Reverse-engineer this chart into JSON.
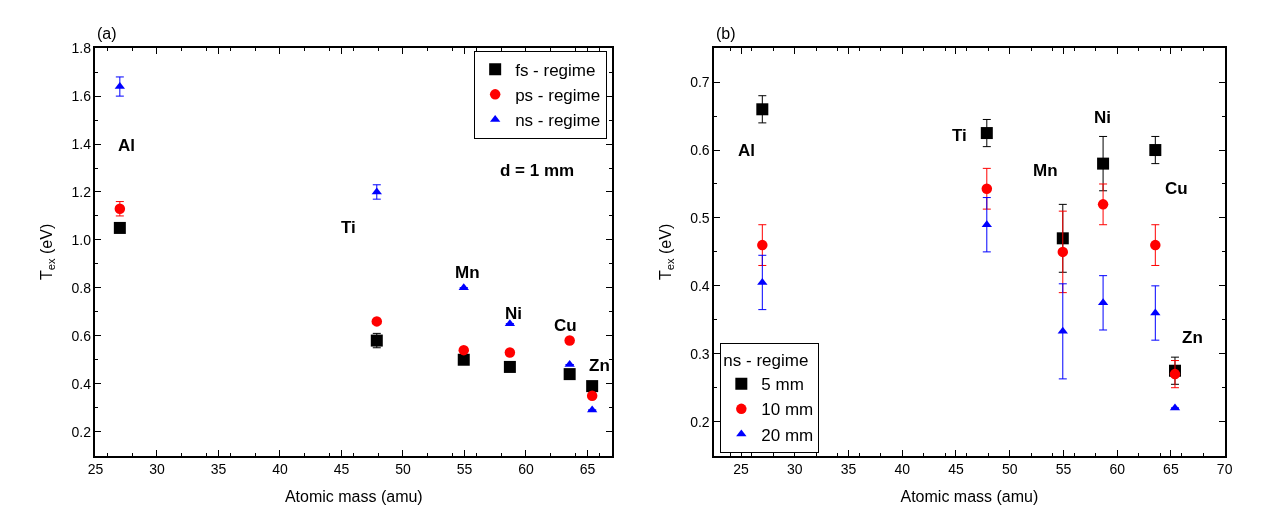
{
  "chart_data": [
    {
      "type": "scatter",
      "title": "(a)",
      "xlabel": "Atomic mass (amu)",
      "ylabel": "T$_{ex}$ (eV)",
      "x": [
        26.98,
        47.87,
        54.94,
        58.69,
        63.55,
        65.38
      ],
      "series": [
        {
          "name": "fs - regime",
          "color": "#000000",
          "marker": "square",
          "values": [
            1.05,
            0.58,
            0.5,
            0.47,
            0.44,
            0.39
          ],
          "errors": [
            null,
            0.03,
            null,
            null,
            null,
            null
          ]
        },
        {
          "name": "ps - regime",
          "color": "#ff0000",
          "marker": "circle",
          "values": [
            1.13,
            0.66,
            0.54,
            0.53,
            0.58,
            0.35
          ],
          "errors": [
            0.03,
            null,
            null,
            null,
            null,
            null
          ]
        },
        {
          "name": "ns - regime",
          "color": "#0000ff",
          "marker": "triangle",
          "values": [
            1.64,
            1.2,
            0.8,
            0.65,
            0.48,
            0.29
          ],
          "errors": [
            0.04,
            0.03,
            null,
            null,
            null,
            null
          ]
        }
      ],
      "xlim": [
        25,
        67
      ],
      "xticks": [
        25,
        30,
        35,
        40,
        45,
        50,
        55,
        60,
        65
      ],
      "ylim": [
        0.1,
        1.8
      ],
      "yticks": [
        0.2,
        0.4,
        0.6,
        0.8,
        {
          "value": 1,
          "label": "1.0"
        },
        1.2,
        1.4,
        1.6,
        1.8
      ],
      "legend": "top right",
      "annotations": [
        "d = 1 mm",
        "Al",
        "Ti",
        "Mn",
        "Ni",
        "Cu",
        "Zn"
      ]
    },
    {
      "type": "scatter",
      "title": "(b)",
      "xlabel": "Atomic mass (amu)",
      "ylabel": "T$_{ex}$ (eV)",
      "x": [
        26.98,
        47.87,
        54.94,
        58.69,
        63.55,
        65.38
      ],
      "series": [
        {
          "name": "5 mm",
          "color": "#000000",
          "marker": "square",
          "values": [
            0.66,
            0.625,
            0.47,
            0.58,
            0.6,
            0.275
          ],
          "errors": [
            0.02,
            0.02,
            0.05,
            0.04,
            0.02,
            0.02
          ]
        },
        {
          "name": "10 mm",
          "color": "#ff0000",
          "marker": "circle",
          "values": [
            0.46,
            0.543,
            0.45,
            0.52,
            0.46,
            0.27
          ],
          "errors": [
            0.03,
            0.03,
            0.06,
            0.03,
            0.03,
            0.02
          ]
        },
        {
          "name": "20 mm",
          "color": "#0000ff",
          "marker": "triangle",
          "values": [
            0.405,
            0.49,
            0.333,
            0.375,
            0.36,
            0.22
          ],
          "errors": [
            0.04,
            0.04,
            0.07,
            0.04,
            0.04,
            null
          ]
        }
      ],
      "xlim": [
        22.5,
        70
      ],
      "xticks": [
        25,
        30,
        35,
        40,
        45,
        50,
        55,
        60,
        65,
        70
      ],
      "ylim": [
        0.15,
        0.75
      ],
      "yticks": [
        0.2,
        0.3,
        0.4,
        0.5,
        0.6,
        0.7
      ],
      "legend": "bottom left",
      "legend_title": "ns - regime",
      "annotations": [
        "Al",
        "Ti",
        "Mn",
        "Ni",
        "Cu",
        "Zn"
      ]
    }
  ]
}
